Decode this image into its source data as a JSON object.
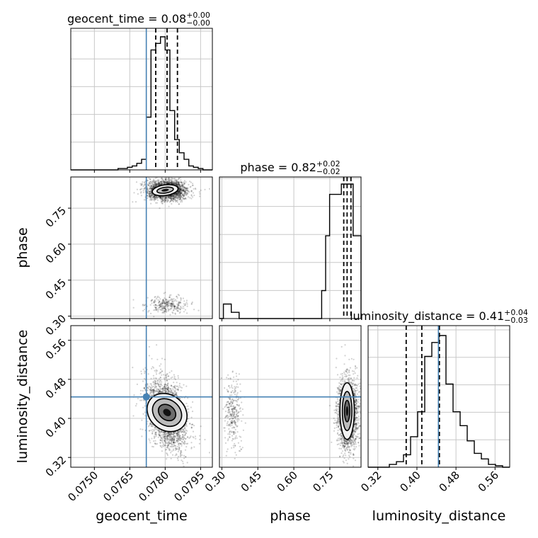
{
  "chart_data": {
    "type": "corner",
    "parameters": [
      "geocent_time",
      "phase",
      "luminosity_distance"
    ],
    "truths": {
      "geocent_time": 0.0772,
      "phase": null,
      "luminosity_distance": 0.444
    },
    "titles": [
      {
        "param": "geocent_time",
        "text": "geocent_time = 0.08",
        "plus": "+0.00",
        "minus": "−0.00"
      },
      {
        "param": "phase",
        "text": "phase = 0.82",
        "plus": "+0.02",
        "minus": "−0.02"
      },
      {
        "param": "luminosity_distance",
        "text": "luminosity_distance = 0.41",
        "plus": "+0.04",
        "minus": "−0.03"
      }
    ],
    "axis_labels": {
      "x": [
        "geocent_time",
        "phase",
        "luminosity_distance"
      ],
      "y": [
        "phase",
        "luminosity_distance"
      ]
    },
    "ranges": {
      "geocent_time": [
        0.074,
        0.08
      ],
      "phase": [
        0.29,
        0.88
      ],
      "luminosity_distance": [
        0.3,
        0.59
      ]
    },
    "ticks": {
      "geocent_time": [
        "0.0750",
        "0.0765",
        "0.0780",
        "0.0795"
      ],
      "phase": [
        "0.30",
        "0.45",
        "0.60",
        "0.75"
      ],
      "luminosity_distance": [
        "0.32",
        "0.40",
        "0.48",
        "0.56"
      ]
    },
    "quantiles": {
      "geocent_time": [
        0.0776,
        0.07808,
        0.07852
      ],
      "phase": [
        0.808,
        0.822,
        0.838
      ],
      "luminosity_distance": [
        0.378,
        0.41,
        0.446
      ]
    },
    "histograms": {
      "geocent_time": {
        "edges_range": [
          0.074,
          0.08
        ],
        "counts": [
          0,
          0,
          0,
          0,
          0,
          0,
          0,
          0,
          0,
          0,
          1,
          1,
          2,
          3,
          5,
          8,
          40,
          91,
          96,
          101,
          91,
          45,
          23,
          13,
          8,
          3,
          2,
          1,
          0,
          0
        ]
      },
      "phase": {
        "edges_range": [
          0.29,
          0.88
        ],
        "counts": [
          0,
          14,
          14,
          6,
          6,
          0,
          0,
          0,
          0,
          0,
          0,
          0,
          0,
          0,
          0,
          0,
          0,
          0,
          0,
          0,
          0,
          0,
          0,
          0,
          0,
          0,
          27,
          80,
          120,
          120,
          120,
          130,
          130,
          130,
          80,
          80
        ]
      },
      "luminosity_distance": {
        "edges_range": [
          0.3,
          0.59
        ],
        "counts": [
          0,
          0,
          0,
          2,
          4,
          9,
          22,
          40,
          80,
          90,
          95,
          60,
          40,
          30,
          19,
          10,
          6,
          2,
          1,
          0
        ]
      }
    },
    "grid": true,
    "style": {
      "truth_color": "#4682b4",
      "line_color": "#000000",
      "grid_color": "#c8c8c8"
    }
  }
}
